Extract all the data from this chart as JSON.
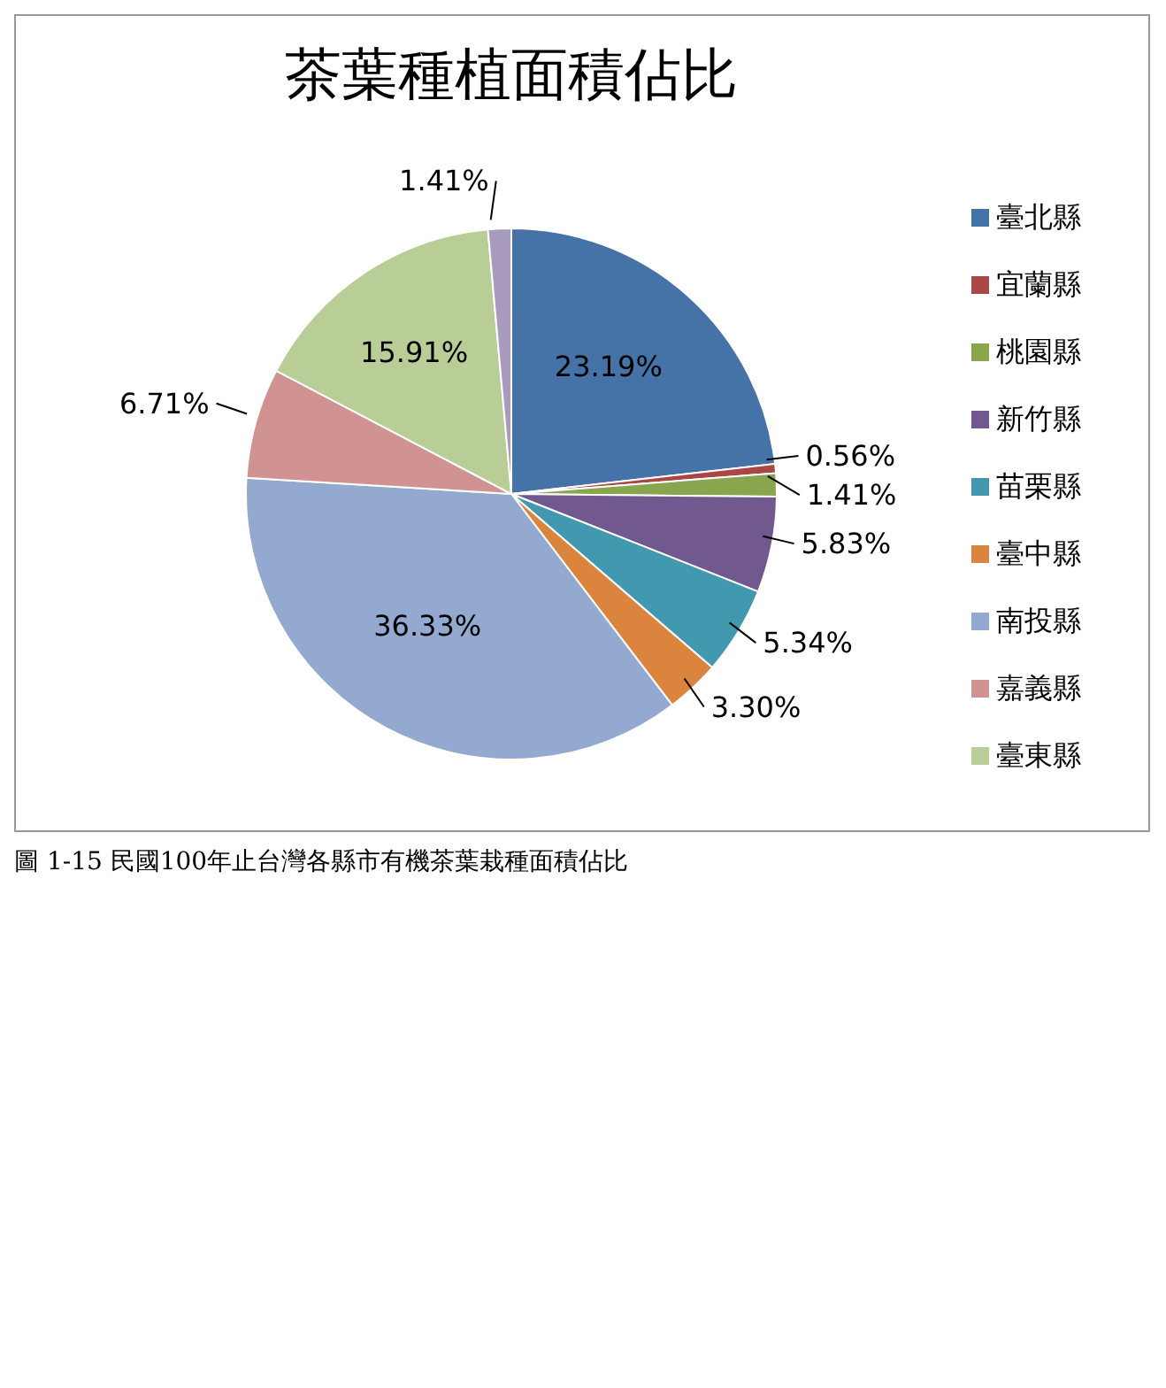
{
  "chart_data": {
    "type": "pie",
    "title": "茶葉種植面積佔比",
    "categories": [
      "臺北縣",
      "宜蘭縣",
      "桃園縣",
      "新竹縣",
      "苗栗縣",
      "臺中縣",
      "南投縣",
      "嘉義縣",
      "臺東縣",
      null
    ],
    "values": [
      23.19,
      0.56,
      1.41,
      5.83,
      5.34,
      3.3,
      36.33,
      6.71,
      15.91,
      1.41
    ],
    "value_labels": [
      "23.19%",
      "0.56%",
      "1.41%",
      "5.83%",
      "5.34%",
      "3.30%",
      "36.33%",
      "6.71%",
      "15.91%",
      "1.41%"
    ],
    "colors": [
      "#4572a7",
      "#aa4643",
      "#89a54e",
      "#71588f",
      "#4198af",
      "#db843d",
      "#93a9cf",
      "#d19392",
      "#b9cd96",
      "#a99bbd"
    ],
    "legend": "right",
    "annotations": [
      "圖 1-15 民國100年止台灣各縣市有機茶葉栽種面積佔比"
    ]
  }
}
